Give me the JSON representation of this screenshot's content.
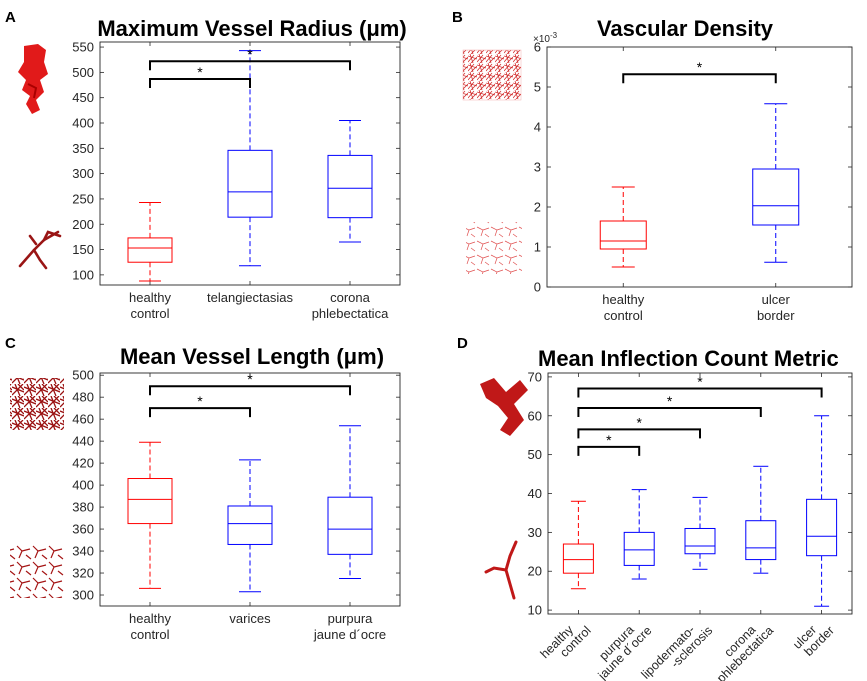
{
  "colors": {
    "control": "#ff0000",
    "patient": "#0000ff",
    "axis": "#262626",
    "bracket": "#000000",
    "vessel_dark": "#b01c1c",
    "vessel_red": "#e11a1a"
  },
  "chart_data": [
    {
      "panel": "A",
      "type": "box",
      "title": "Maximum Vessel Radius (μm)",
      "ylim": [
        80,
        560
      ],
      "yticks": [
        100,
        150,
        200,
        250,
        300,
        350,
        400,
        450,
        500,
        550
      ],
      "categories": [
        [
          "healthy",
          "control"
        ],
        [
          "telangiectasias"
        ],
        [
          "corona",
          "phlebectatica"
        ]
      ],
      "boxes": [
        {
          "whisker_low": 88,
          "q1": 125,
          "median": 153,
          "q3": 173,
          "whisker_high": 243,
          "group": "control"
        },
        {
          "whisker_low": 118,
          "q1": 214,
          "median": 264,
          "q3": 346,
          "whisker_high": 543,
          "group": "patient"
        },
        {
          "whisker_low": 165,
          "q1": 213,
          "median": 271,
          "q3": 336,
          "whisker_high": 405,
          "group": "patient"
        }
      ],
      "brackets": [
        {
          "from": 0,
          "to": 1,
          "y": 487,
          "label": "*"
        },
        {
          "from": 0,
          "to": 2,
          "y": 522,
          "label": "*"
        }
      ],
      "icons": [
        "thick-vessel-icon",
        "thin-vessel-icon"
      ]
    },
    {
      "panel": "B",
      "type": "box",
      "title": "Vascular Density",
      "exponent_label": "×10",
      "exponent_power": "-3",
      "ylim": [
        0,
        6
      ],
      "yticks": [
        0,
        1,
        2,
        3,
        4,
        5,
        6
      ],
      "categories": [
        [
          "healthy",
          "control"
        ],
        [
          "ulcer",
          "border"
        ]
      ],
      "boxes": [
        {
          "whisker_low": 0.5,
          "q1": 0.95,
          "median": 1.15,
          "q3": 1.65,
          "whisker_high": 2.5,
          "group": "control"
        },
        {
          "whisker_low": 0.62,
          "q1": 1.55,
          "median": 2.03,
          "q3": 2.95,
          "whisker_high": 4.58,
          "group": "patient"
        }
      ],
      "brackets": [
        {
          "from": 0,
          "to": 1,
          "y": 5.32,
          "label": "*"
        }
      ],
      "icons": [
        "dense-network-icon",
        "sparse-network-icon"
      ]
    },
    {
      "panel": "C",
      "type": "box",
      "title": "Mean Vessel Length (μm)",
      "ylim": [
        290,
        502
      ],
      "yticks": [
        300,
        320,
        340,
        360,
        380,
        400,
        420,
        440,
        460,
        480,
        500
      ],
      "categories": [
        [
          "healthy",
          "control"
        ],
        [
          "varices"
        ],
        [
          "purpura",
          "jaune d´ocre"
        ]
      ],
      "boxes": [
        {
          "whisker_low": 306,
          "q1": 365,
          "median": 387,
          "q3": 406,
          "whisker_high": 439,
          "group": "control"
        },
        {
          "whisker_low": 303,
          "q1": 346,
          "median": 365,
          "q3": 381,
          "whisker_high": 423,
          "group": "patient"
        },
        {
          "whisker_low": 315,
          "q1": 337,
          "median": 360,
          "q3": 389,
          "whisker_high": 454,
          "group": "patient"
        }
      ],
      "brackets": [
        {
          "from": 0,
          "to": 1,
          "y": 470,
          "label": "*"
        },
        {
          "from": 0,
          "to": 2,
          "y": 490,
          "label": "*"
        }
      ],
      "icons": [
        "long-vessel-network-icon",
        "short-vessel-network-icon"
      ]
    },
    {
      "panel": "D",
      "type": "box",
      "title": "Mean Inflection Count Metric",
      "ylim": [
        9,
        71
      ],
      "yticks": [
        10,
        20,
        30,
        40,
        50,
        60,
        70
      ],
      "categories": [
        [
          "healthy",
          "control"
        ],
        [
          "purpura",
          "jaune d´ocre"
        ],
        [
          "lipodermato-",
          "-sclerosis"
        ],
        [
          "corona",
          "phlebectatica"
        ],
        [
          "ulcer",
          "border"
        ]
      ],
      "boxes": [
        {
          "whisker_low": 15.5,
          "q1": 19.5,
          "median": 23,
          "q3": 27,
          "whisker_high": 38,
          "group": "control"
        },
        {
          "whisker_low": 18,
          "q1": 21.5,
          "median": 25.5,
          "q3": 30,
          "whisker_high": 41,
          "group": "patient"
        },
        {
          "whisker_low": 20.5,
          "q1": 24.5,
          "median": 26.5,
          "q3": 31,
          "whisker_high": 39,
          "group": "patient"
        },
        {
          "whisker_low": 19.5,
          "q1": 23,
          "median": 26,
          "q3": 33,
          "whisker_high": 47,
          "group": "patient"
        },
        {
          "whisker_low": 11,
          "q1": 24,
          "median": 29,
          "q3": 38.5,
          "whisker_high": 60,
          "group": "patient"
        }
      ],
      "brackets": [
        {
          "from": 0,
          "to": 1,
          "y": 52,
          "label": "*"
        },
        {
          "from": 0,
          "to": 2,
          "y": 56.5,
          "label": "*"
        },
        {
          "from": 0,
          "to": 3,
          "y": 62,
          "label": "*"
        },
        {
          "from": 0,
          "to": 4,
          "y": 67,
          "label": "*"
        }
      ],
      "icons": [
        "twisted-vessel-icon",
        "straight-vessel-icon"
      ]
    }
  ]
}
